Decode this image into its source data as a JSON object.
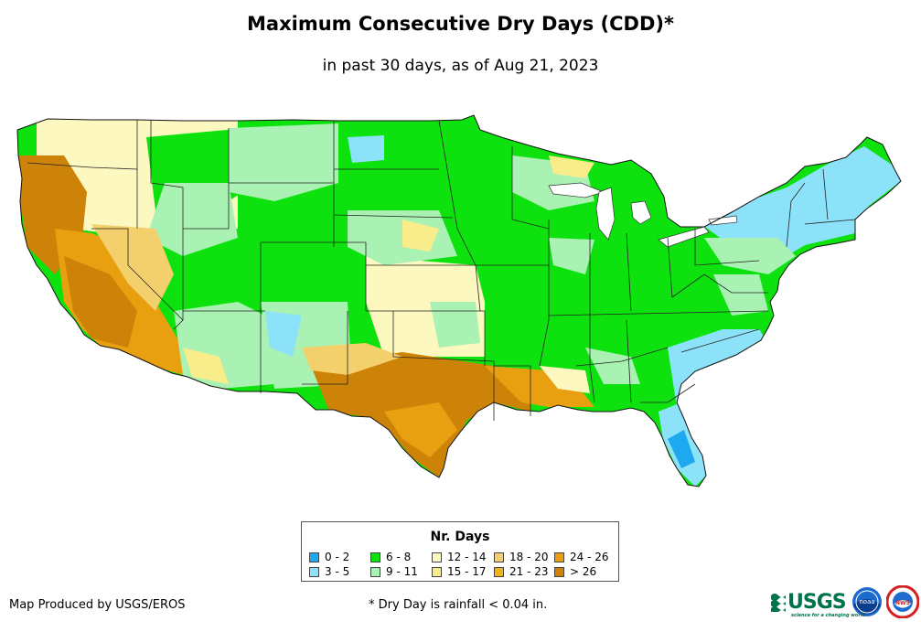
{
  "title": "Maximum Consecutive Dry Days (CDD)*",
  "subtitle": "in past 30 days, as of Aug 21, 2023",
  "legend": {
    "title": "Nr. Days",
    "items": [
      {
        "label": "0 - 2",
        "color": "#1ea8f0"
      },
      {
        "label": "3 - 5",
        "color": "#8ce2f8"
      },
      {
        "label": "6 - 8",
        "color": "#0ee20e"
      },
      {
        "label": "9 - 11",
        "color": "#aaf2b4"
      },
      {
        "label": "12 - 14",
        "color": "#fdf8c0"
      },
      {
        "label": "15 - 17",
        "color": "#f9ec8a"
      },
      {
        "label": "18 - 20",
        "color": "#f3d06c"
      },
      {
        "label": "21 - 23",
        "color": "#f1b21c"
      },
      {
        "label": "24 - 26",
        "color": "#e8a010"
      },
      {
        "label": "> 26",
        "color": "#cd8208"
      }
    ]
  },
  "footer": {
    "credit": "Map Produced by USGS/EROS",
    "note": "* Dry Day is rainfall < 0.04 in."
  },
  "logos": {
    "usgs": "USGS",
    "usgs_tagline": "science for a changing world",
    "noaa": "noaa",
    "nws": "NWS"
  }
}
